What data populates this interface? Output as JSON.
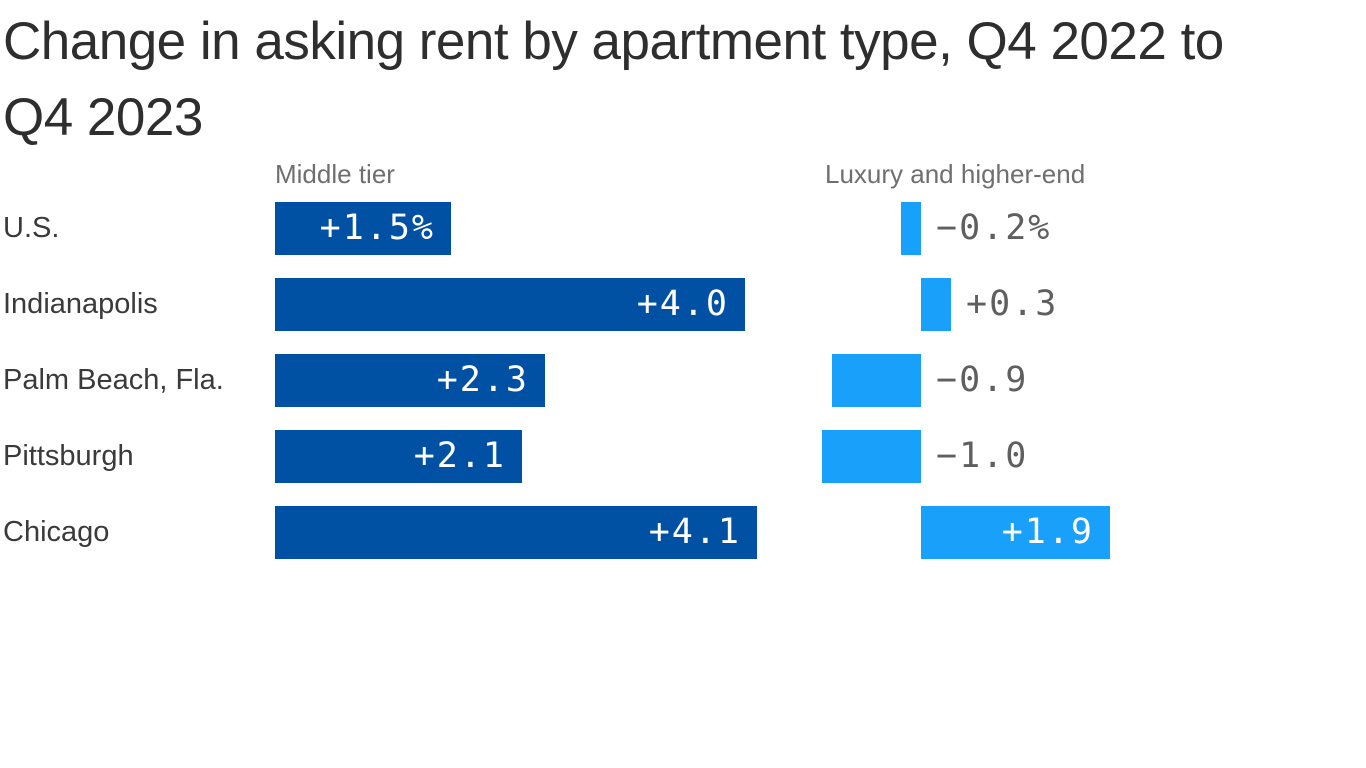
{
  "title": {
    "line1": "Change in asking rent by apartment type, Q4 2022 to",
    "line2": "Q4 2023"
  },
  "chart_data": {
    "type": "bar",
    "orientation": "horizontal",
    "title": "Change in asking rent by apartment type, Q4 2022 to Q4 2023",
    "unit": "percent",
    "grid": "off",
    "legend_position": "column-headers-above-bars",
    "categories": [
      "U.S.",
      "Indianapolis",
      "Palm Beach, Fla.",
      "Pittsburgh",
      "Chicago"
    ],
    "series": [
      {
        "name": "Middle tier",
        "values": [
          1.5,
          4.0,
          2.3,
          2.1,
          4.1
        ],
        "labels": [
          "+1.5%",
          "+4.0",
          "+2.3",
          "+2.1",
          "+4.1"
        ],
        "color": "#0050a4",
        "label_placement": "inside-end"
      },
      {
        "name": "Luxury and higher-end",
        "values": [
          -0.2,
          0.3,
          -0.9,
          -1.0,
          1.9
        ],
        "labels": [
          "−0.2%",
          "+0.3",
          "−0.9",
          "−1.0",
          "+1.9"
        ],
        "color": "#18a0fa",
        "label_placement": "outside-right-except-last-inside"
      }
    ],
    "axis": {
      "middle_tier_range": [
        0,
        4.1
      ],
      "luxury_range": [
        -1.0,
        1.9
      ]
    }
  },
  "colors": {
    "middle_tier_bar": "#0050a4",
    "luxury_bar": "#18a0fa",
    "title_text": "#2e2e2e",
    "row_label_text": "#3a3a3a",
    "series_header_text": "#6f6f6f",
    "outside_value_text": "#5f5f5f",
    "inside_value_text": "#ffffff",
    "background": "#ffffff"
  }
}
